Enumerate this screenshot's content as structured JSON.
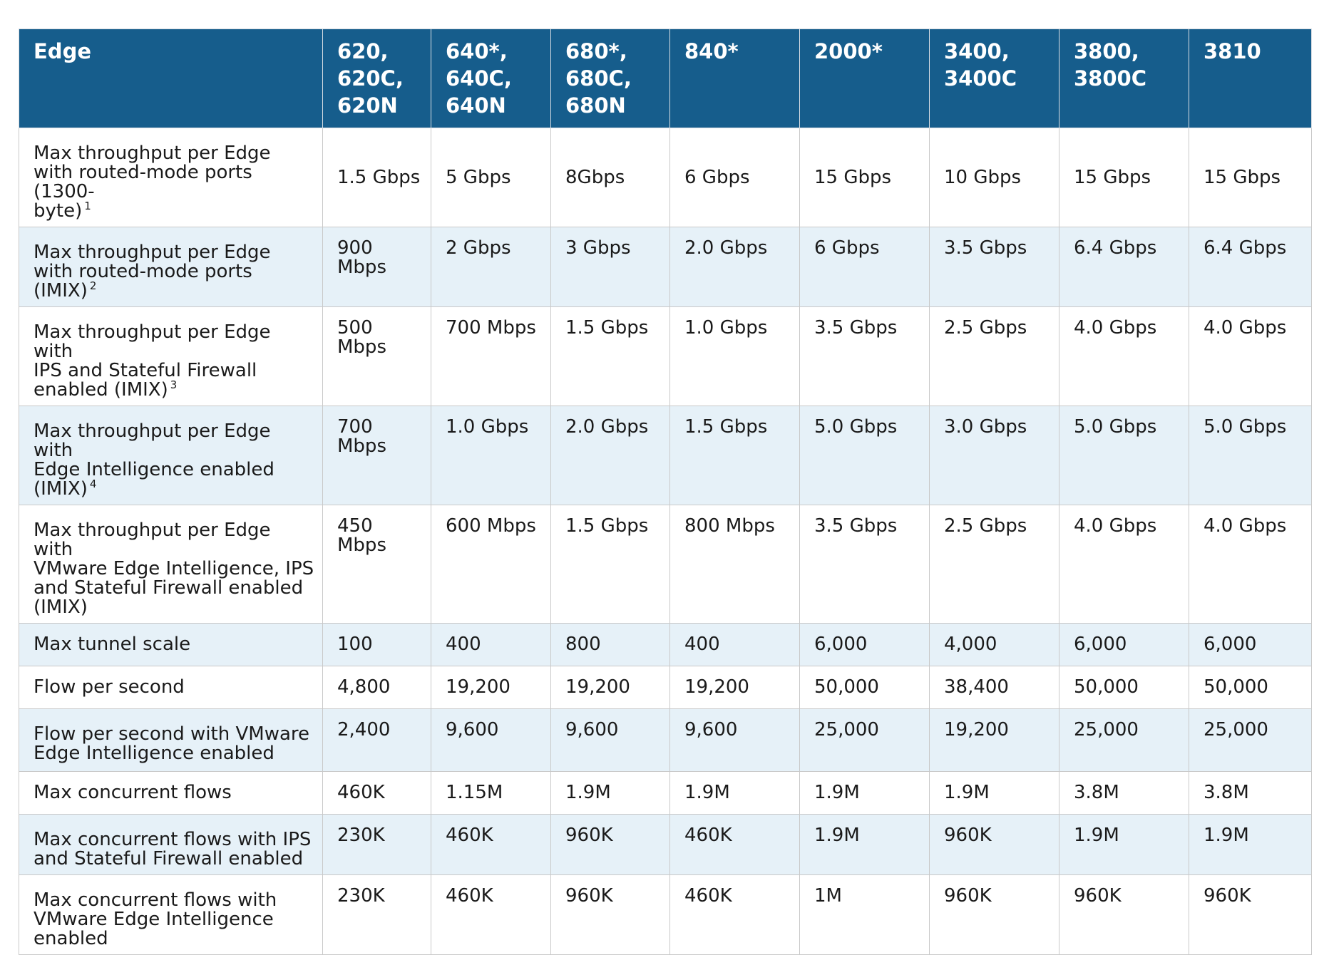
{
  "table": {
    "header": {
      "edge_label": "Edge",
      "models": [
        [
          "620,",
          "620C,",
          "620N"
        ],
        [
          "640*,",
          "640C,",
          "640N"
        ],
        [
          "680*,",
          "680C,",
          "680N"
        ],
        [
          "840*"
        ],
        [
          "2000*"
        ],
        [
          "3400,",
          "3400C"
        ],
        [
          "3800,",
          "3800C"
        ],
        [
          "3810"
        ]
      ]
    },
    "rows": [
      {
        "label": [
          "Max throughput per Edge",
          "with routed-mode ports (1300-",
          "byte)"
        ],
        "footnote": "1",
        "values": [
          "1.5 Gbps",
          "5 Gbps",
          "8Gbps",
          "6 Gbps",
          "15 Gbps",
          "10 Gbps",
          "15 Gbps",
          "15 Gbps"
        ]
      },
      {
        "label": [
          "Max throughput per Edge",
          "with routed-mode ports (IMIX)"
        ],
        "footnote": "2",
        "values": [
          "900 Mbps",
          "2 Gbps",
          "3 Gbps",
          "2.0 Gbps",
          "6 Gbps",
          "3.5 Gbps",
          "6.4 Gbps",
          "6.4 Gbps"
        ]
      },
      {
        "label": [
          "Max throughput per Edge with",
          "IPS and Stateful Firewall",
          "enabled (IMIX)"
        ],
        "footnote": "3",
        "values": [
          "500 Mbps",
          "700 Mbps",
          "1.5 Gbps",
          "1.0 Gbps",
          "3.5 Gbps",
          "2.5 Gbps",
          "4.0 Gbps",
          "4.0 Gbps"
        ]
      },
      {
        "label": [
          "Max throughput per Edge with",
          "Edge Intelligence enabled",
          "(IMIX)"
        ],
        "footnote": "4",
        "values": [
          "700 Mbps",
          "1.0 Gbps",
          "2.0 Gbps",
          "1.5 Gbps",
          "5.0 Gbps",
          "3.0 Gbps",
          "5.0 Gbps",
          "5.0 Gbps"
        ]
      },
      {
        "label": [
          "Max throughput per Edge with",
          "VMware Edge Intelligence, IPS",
          "and Stateful Firewall enabled",
          "(IMIX)"
        ],
        "footnote": "",
        "values": [
          "450 Mbps",
          "600 Mbps",
          "1.5 Gbps",
          "800 Mbps",
          "3.5 Gbps",
          "2.5 Gbps",
          "4.0 Gbps",
          "4.0 Gbps"
        ]
      },
      {
        "label": [
          "Max tunnel scale"
        ],
        "footnote": "",
        "values": [
          "100",
          "400",
          "800",
          "400",
          "6,000",
          "4,000",
          "6,000",
          "6,000"
        ]
      },
      {
        "label": [
          "Flow per second"
        ],
        "footnote": "",
        "values": [
          "4,800",
          "19,200",
          "19,200",
          "19,200",
          "50,000",
          "38,400",
          "50,000",
          "50,000"
        ]
      },
      {
        "label": [
          "Flow per second with VMware",
          "Edge Intelligence enabled"
        ],
        "footnote": "",
        "values": [
          "2,400",
          "9,600",
          "9,600",
          "9,600",
          "25,000",
          "19,200",
          "25,000",
          "25,000"
        ]
      },
      {
        "label": [
          "Max concurrent flows"
        ],
        "footnote": "",
        "values": [
          "460K",
          "1.15M",
          "1.9M",
          "1.9M",
          "1.9M",
          "1.9M",
          "3.8M",
          "3.8M"
        ]
      },
      {
        "label": [
          "Max concurrent flows with IPS",
          "and Stateful Firewall enabled"
        ],
        "footnote": "",
        "values": [
          "230K",
          "460K",
          "960K",
          "460K",
          "1.9M",
          "960K",
          "1.9M",
          "1.9M"
        ]
      },
      {
        "label": [
          "Max concurrent flows with",
          "VMware Edge Intelligence",
          "enabled"
        ],
        "footnote": "",
        "values": [
          "230K",
          "460K",
          "960K",
          "460K",
          "1M",
          "960K",
          "960K",
          "960K"
        ]
      }
    ]
  },
  "colors": {
    "header_bg": "#165d8c",
    "header_text": "#ffffff",
    "shaded_row_bg": "#e6f1f8",
    "grid_line": "#c9c9c9"
  }
}
